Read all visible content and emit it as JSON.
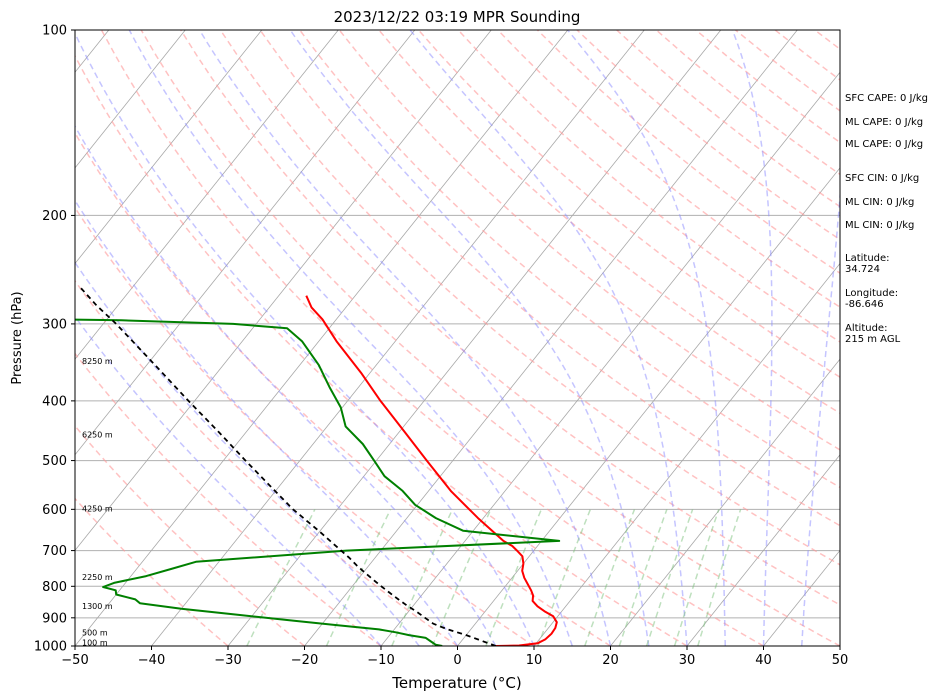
{
  "chart_data": {
    "type": "line",
    "title": "2023/12/22 03:19 MPR Sounding",
    "xlabel": "Temperature (°C)",
    "ylabel": "Pressure (hPa)",
    "xlim": [
      -50,
      50
    ],
    "ylim": [
      1000,
      100
    ],
    "y_scale": "log",
    "x_ticks": [
      -50,
      -40,
      -30,
      -20,
      -10,
      0,
      10,
      20,
      30,
      40,
      50
    ],
    "x_tick_labels": [
      "−50",
      "−40",
      "−30",
      "−20",
      "−10",
      "0",
      "10",
      "20",
      "30",
      "40",
      "50"
    ],
    "y_ticks": [
      100,
      200,
      300,
      400,
      500,
      600,
      700,
      800,
      900,
      1000
    ],
    "y_tick_labels": [
      "100",
      "200",
      "300",
      "400",
      "500",
      "600",
      "700",
      "800",
      "900",
      "1000"
    ],
    "grid": true,
    "colors": {
      "temperature": "#ff0000",
      "dewpoint": "#008000",
      "parcel": "#000000",
      "dry_adiabats": "#ff9a9a",
      "moist_adiabats": "#8c8cff",
      "mixing_ratio": "#7dc27d",
      "isotherms": "#a8a8a8",
      "isobars": "#b0b0b0"
    },
    "series": [
      {
        "key": "temperature",
        "pressure": [
          1000,
          998,
          990,
          975,
          955,
          935,
          915,
          895,
          880,
          862,
          845,
          828,
          812,
          795,
          775,
          755,
          735,
          715,
          700,
          688,
          675,
          620,
          560,
          500,
          450,
          400,
          360,
          320,
          295,
          282,
          270
        ],
        "values": [
          5.0,
          8.0,
          10.2,
          10.8,
          11.0,
          10.9,
          10.5,
          9.4,
          7.9,
          6.3,
          5.1,
          4.6,
          3.8,
          2.8,
          1.6,
          0.6,
          0.0,
          -0.9,
          -2.2,
          -3.3,
          -5.0,
          -10.7,
          -17.1,
          -23.4,
          -29.2,
          -35.7,
          -41.2,
          -47.7,
          -51.8,
          -54.5,
          -56.4
        ]
      },
      {
        "key": "dewpoint",
        "pressure": [
          1000,
          995,
          985,
          970,
          960,
          950,
          940,
          925,
          910,
          890,
          870,
          852,
          840,
          825,
          812,
          802,
          790,
          770,
          750,
          730,
          700,
          675,
          650,
          620,
          590,
          560,
          530,
          500,
          470,
          440,
          410,
          380,
          350,
          320,
          305,
          300,
          296,
          294,
          293
        ],
        "values": [
          -2.0,
          -3.0,
          -3.8,
          -5.0,
          -7.5,
          -9.5,
          -12.0,
          -18.0,
          -24.0,
          -32.0,
          -40.0,
          -46.0,
          -47.0,
          -50.0,
          -50.5,
          -52.5,
          -51.5,
          -48.0,
          -45.5,
          -43.0,
          -24.5,
          2.3,
          -11.3,
          -16.2,
          -20.3,
          -23.4,
          -27.3,
          -30.3,
          -33.5,
          -37.6,
          -40.2,
          -43.8,
          -47.5,
          -52.2,
          -55.5,
          -63.0,
          -78.0,
          -95.0,
          -115.0
        ]
      },
      {
        "key": "parcel",
        "pressure": [
          1000,
          960,
          940,
          920,
          900,
          880,
          860,
          840,
          820,
          800,
          780,
          760,
          740,
          720,
          700,
          650,
          600,
          550,
          500,
          450,
          400,
          350,
          300,
          280,
          260
        ],
        "values": [
          5.0,
          0.0,
          -3.0,
          -5.5,
          -7.2,
          -8.9,
          -10.8,
          -12.6,
          -14.4,
          -16.2,
          -18.0,
          -19.8,
          -21.6,
          -23.3,
          -25.2,
          -30.2,
          -35.8,
          -41.2,
          -47.1,
          -53.5,
          -60.8,
          -68.9,
          -78.3,
          -82.8,
          -87.2
        ]
      }
    ],
    "height_labels": [
      {
        "pressure": 346,
        "text": "8250 m"
      },
      {
        "pressure": 455,
        "text": "6250 m"
      },
      {
        "pressure": 600,
        "text": "4250 m"
      },
      {
        "pressure": 775,
        "text": "2250 m"
      },
      {
        "pressure": 865,
        "text": "1300 m"
      },
      {
        "pressure": 955,
        "text": "500 m"
      },
      {
        "pressure": 990,
        "text": "100 m"
      }
    ]
  },
  "side_panel": {
    "sfc_cape": "SFC CAPE: 0 J/kg",
    "ml_cape_1": "ML CAPE: 0 J/kg",
    "ml_cape_2": "ML CAPE: 0 J/kg",
    "sfc_cin": "SFC CIN: 0 J/kg",
    "ml_cin_1": "ML CIN: 0 J/kg",
    "ml_cin_2": "ML CIN: 0 J/kg",
    "latitude": "Latitude:\n34.724",
    "longitude": "Longitude:\n-86.646",
    "altitude": "Altitude:\n215 m AGL"
  }
}
